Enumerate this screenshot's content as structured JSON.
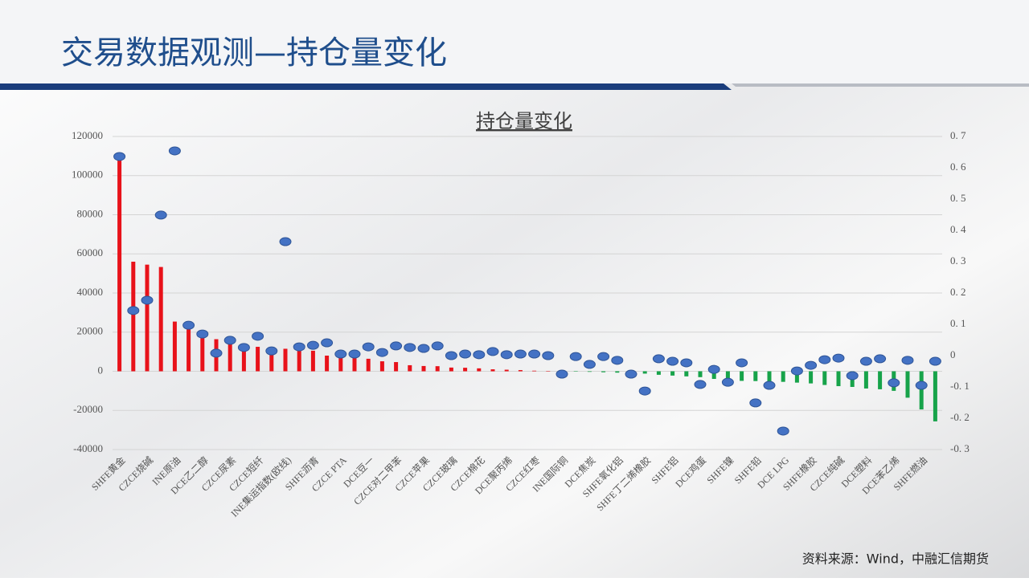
{
  "header": {
    "title": "交易数据观测—持仓量变化"
  },
  "source": "资料来源：Wind，中融汇信期货",
  "chart_data": {
    "type": "bar_scatter",
    "title": "持仓量变化",
    "categories": [
      "SHFE黄金",
      null,
      "CZCE烧碱",
      null,
      "INE原油",
      null,
      "DCE乙二醇",
      null,
      "CZCE尿素",
      null,
      "CZCE短纤",
      null,
      "INE集运指数(欧线)",
      null,
      "SHFE沥青",
      null,
      "CZCE PTA",
      null,
      "DCE豆一",
      null,
      "CZCE对二甲苯",
      null,
      "CZCE苹果",
      null,
      "CZCE玻璃",
      null,
      "CZCE棉花",
      null,
      "DCE聚丙烯",
      null,
      "CZCE红枣",
      null,
      "INE国际铜",
      null,
      "DCE焦炭",
      null,
      "SHFE氧化铝",
      null,
      "SHFE丁二烯橡胶",
      null,
      "SHFE铝",
      null,
      "DCE鸡蛋",
      null,
      "SHFE镍",
      null,
      "SHFE铅",
      null,
      "DCE LPG",
      null,
      "SHFE橡胶",
      null,
      "CZCE纯碱",
      null,
      "DCE塑料",
      null,
      "DCE苯乙烯",
      null,
      "SHFE燃油",
      null
    ],
    "series": [
      {
        "type": "bar",
        "color": "#e8121a",
        "negative_color": "#17a34a",
        "values": [
          110000,
          56000,
          54500,
          53300,
          25400,
          23800,
          18500,
          16400,
          14400,
          13500,
          12500,
          11900,
          11500,
          11000,
          10500,
          8000,
          7400,
          7000,
          6400,
          5100,
          4700,
          3100,
          2700,
          2600,
          1900,
          1800,
          1500,
          1000,
          800,
          600,
          300,
          100,
          -100,
          -200,
          -300,
          -500,
          -700,
          -900,
          -1200,
          -1800,
          -2200,
          -2600,
          -3000,
          -3900,
          -4500,
          -4900,
          -5000,
          -5300,
          -5400,
          -5800,
          -6200,
          -7000,
          -7600,
          -8000,
          -8800,
          -9200,
          -10000,
          -13500,
          -19500,
          -25600
        ]
      },
      {
        "type": "scatter",
        "axis": "y2",
        "color": "#4472c4",
        "values": [
          0.636,
          0.144,
          0.177,
          0.449,
          0.654,
          0.097,
          0.069,
          0.008,
          0.049,
          0.026,
          0.062,
          0.015,
          0.364,
          0.028,
          0.033,
          0.041,
          0.005,
          0.005,
          0.028,
          0.01,
          0.031,
          0.026,
          0.023,
          0.031,
          0,
          0.005,
          0.003,
          0.013,
          0.003,
          0.005,
          0.005,
          0,
          -0.059,
          -0.003,
          -0.028,
          -0.003,
          -0.015,
          -0.059,
          -0.113,
          -0.01,
          -0.018,
          -0.023,
          -0.092,
          -0.044,
          -0.085,
          -0.023,
          -0.151,
          -0.095,
          -0.241,
          -0.049,
          -0.031,
          -0.013,
          -0.008,
          -0.064,
          -0.018,
          -0.01,
          -0.087,
          -0.015,
          -0.095,
          -0.018
        ]
      }
    ],
    "ylim": [
      -40000,
      120000
    ],
    "yticks": [
      -40000,
      -20000,
      0,
      20000,
      40000,
      60000,
      80000,
      100000,
      120000
    ],
    "y2lim": [
      -0.3,
      0.7
    ],
    "y2ticks": [
      {
        "value": -0.3,
        "label": "-0. 3"
      },
      {
        "value": -0.2,
        "label": "-0. 2"
      },
      {
        "value": -0.1,
        "label": "-0. 1"
      },
      0,
      {
        "value": 0.1,
        "label": "0. 1"
      },
      {
        "value": 0.2,
        "label": "0. 2"
      },
      {
        "value": 0.3,
        "label": "0. 3"
      },
      {
        "value": 0.4,
        "label": "0. 4"
      },
      {
        "value": 0.5,
        "label": "0. 5"
      },
      {
        "value": 0.6,
        "label": "0. 6"
      },
      {
        "value": 0.7,
        "label": "0. 7"
      }
    ],
    "grid": true
  }
}
